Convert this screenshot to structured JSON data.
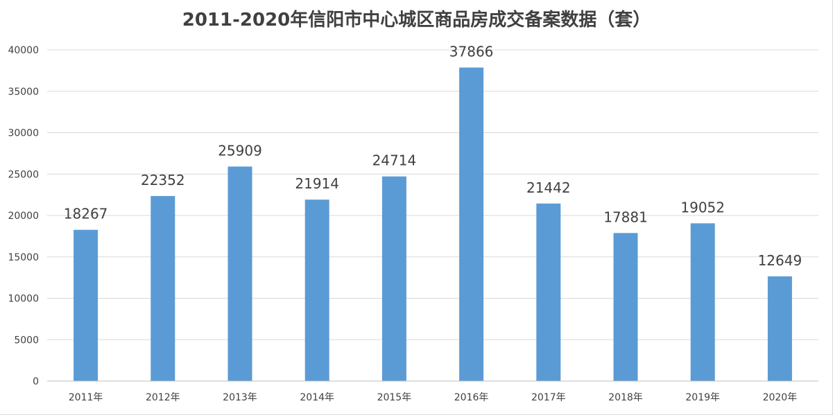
{
  "chart_data": {
    "type": "bar",
    "title": "2011-2020年信阳市中心城区商品房成交备案数据（套）",
    "categories": [
      "2011年",
      "2012年",
      "2013年",
      "2014年",
      "2015年",
      "2016年",
      "2017年",
      "2018年",
      "2019年",
      "2020年"
    ],
    "values": [
      18267,
      22352,
      25909,
      21914,
      24714,
      37866,
      21442,
      17881,
      19052,
      12649
    ],
    "data_labels": [
      "18267",
      "22352",
      "25909",
      "21914",
      "24714",
      "37866",
      "21442",
      "17881",
      "19052",
      "12649"
    ],
    "y_ticks": [
      "0",
      "5000",
      "10000",
      "15000",
      "20000",
      "25000",
      "30000",
      "35000",
      "40000"
    ],
    "ylim": [
      0,
      40000
    ],
    "xlabel": "",
    "ylabel": "",
    "grid": true,
    "legend": "none",
    "bar_color": "#5b9bd5"
  }
}
